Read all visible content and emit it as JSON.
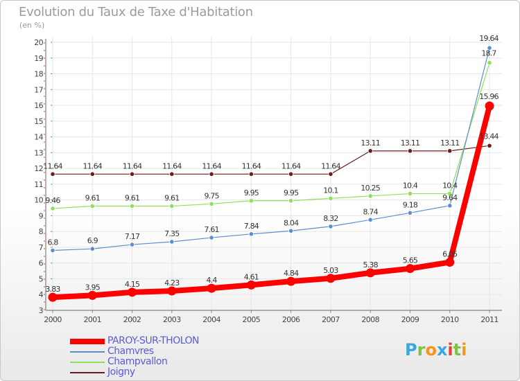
{
  "title": "Evolution du Taux de Taxe d'Habitation",
  "unit": "(en %)",
  "chart_data": {
    "type": "line",
    "title": "Evolution du Taux de Taxe d'Habitation",
    "ylabel": "(en %)",
    "x": [
      "2000",
      "2001",
      "2002",
      "2003",
      "2004",
      "2005",
      "2006",
      "2007",
      "2008",
      "2009",
      "2010",
      "2011"
    ],
    "ylim": [
      3,
      20
    ],
    "yticks": [
      "3",
      "4",
      "5",
      "6",
      "7",
      "8",
      "9",
      "10",
      "11",
      "12",
      "13",
      "14",
      "15",
      "16",
      "17",
      "18",
      "19",
      "20"
    ],
    "grid": true,
    "legend_position": "bottom-left",
    "series": [
      {
        "name": "Joigny",
        "color": "#6b1d1d",
        "values": [
          11.64,
          11.64,
          11.64,
          11.64,
          11.64,
          11.64,
          11.64,
          11.64,
          13.11,
          13.11,
          13.11,
          13.44
        ],
        "labels": [
          "11.64",
          "11.64",
          "11.64",
          "11.64",
          "11.64",
          "11.64",
          "11.64",
          "11.64",
          "13.11",
          "13.11",
          "13.11",
          "13.44"
        ]
      },
      {
        "name": "Champvallon",
        "color": "#8ee05a",
        "values": [
          9.46,
          9.61,
          9.61,
          9.61,
          9.75,
          9.95,
          9.95,
          10.1,
          10.25,
          10.4,
          10.4,
          18.7
        ],
        "labels": [
          "9.46",
          "9.61",
          "9.61",
          "9.61",
          "9.75",
          "9.95",
          "9.95",
          "10.1",
          "10.25",
          "10.4",
          "10.4",
          "18.7"
        ]
      },
      {
        "name": "Chamvres",
        "color": "#5b8ed1",
        "values": [
          6.8,
          6.9,
          7.17,
          7.35,
          7.61,
          7.84,
          8.04,
          8.32,
          8.74,
          9.18,
          9.64,
          19.64
        ],
        "labels": [
          "6.8",
          "6.9",
          "7.17",
          "7.35",
          "7.61",
          "7.84",
          "8.04",
          "8.32",
          "8.74",
          "9.18",
          "9.64",
          "19.64"
        ]
      },
      {
        "name": "PAROY-SUR-THOLON",
        "color": "#ff0000",
        "values": [
          3.83,
          3.95,
          4.15,
          4.23,
          4.4,
          4.61,
          4.84,
          5.03,
          5.38,
          5.65,
          6.05,
          15.96
        ],
        "labels": [
          "3.83",
          "3.95",
          "4.15",
          "4.23",
          "4.4",
          "4.61",
          "4.84",
          "5.03",
          "5.38",
          "5.65",
          "6.05",
          "15.96"
        ]
      }
    ]
  },
  "legend": [
    {
      "label": "PAROY-SUR-THOLON",
      "color": "#ff0000"
    },
    {
      "label": "Chamvres",
      "color": "#5b8ed1"
    },
    {
      "label": "Champvallon",
      "color": "#8ee05a"
    },
    {
      "label": "Joigny",
      "color": "#6b1d1d"
    }
  ],
  "logo": {
    "text": "Proxiti",
    "letters": [
      "P",
      "r",
      "o",
      "x",
      "i",
      "t",
      "i"
    ],
    "colors": [
      "#3aa7e0",
      "#7dc242",
      "#f7941d",
      "#3aa7e0",
      "#e8412c",
      "#7dc242",
      "#f7941d"
    ]
  }
}
